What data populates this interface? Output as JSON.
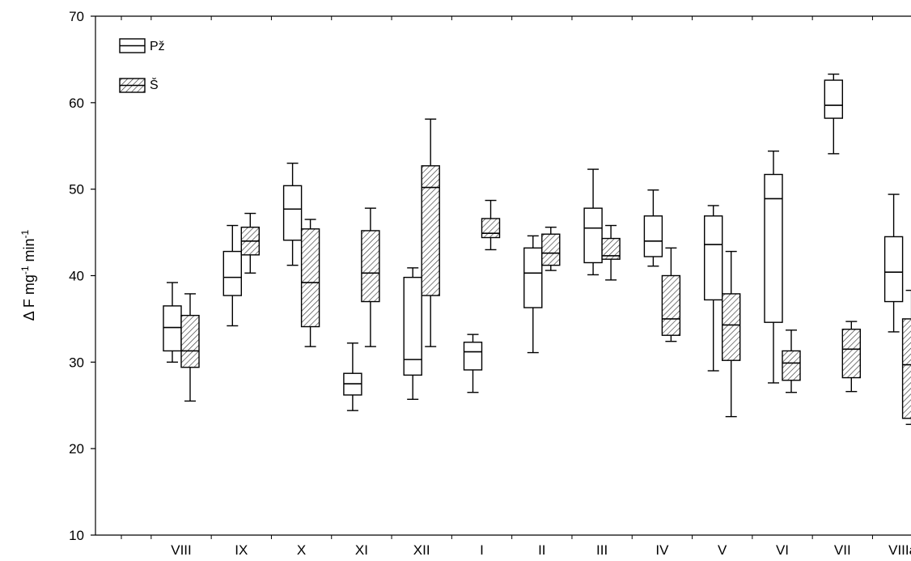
{
  "chart_data": {
    "type": "box",
    "ylabel": {
      "prefix": "Δ F mg",
      "sup1": "-1",
      "mid": " min",
      "sup2": "-1"
    },
    "ylim": [
      10,
      70
    ],
    "yticks": [
      10,
      20,
      30,
      40,
      50,
      60,
      70
    ],
    "categories": [
      "VIII",
      "IX",
      "X",
      "XI",
      "XII",
      "I",
      "II",
      "III",
      "IV",
      "V",
      "VI",
      "VII",
      "VIIIa"
    ],
    "legend": {
      "position": "top-left",
      "items": [
        {
          "name": "Pž",
          "style": "open"
        },
        {
          "name": "Š",
          "style": "hatched"
        }
      ]
    },
    "series": [
      {
        "name": "Pž",
        "style": "open",
        "boxes": [
          {
            "category": "VIII",
            "min": 30.0,
            "q1": 31.3,
            "median": 34.0,
            "q3": 36.5,
            "max": 39.2
          },
          {
            "category": "IX",
            "min": 34.2,
            "q1": 37.7,
            "median": 39.8,
            "q3": 42.8,
            "max": 45.8
          },
          {
            "category": "X",
            "min": 41.2,
            "q1": 44.1,
            "median": 47.7,
            "q3": 50.4,
            "max": 53.0
          },
          {
            "category": "XI",
            "min": 24.4,
            "q1": 26.2,
            "median": 27.5,
            "q3": 28.7,
            "max": 32.2
          },
          {
            "category": "XII",
            "min": 25.7,
            "q1": 28.5,
            "median": 30.3,
            "q3": 39.8,
            "max": 40.9
          },
          {
            "category": "I",
            "min": 26.5,
            "q1": 29.1,
            "median": 31.2,
            "q3": 32.3,
            "max": 33.2
          },
          {
            "category": "II",
            "min": 31.1,
            "q1": 36.3,
            "median": 40.3,
            "q3": 43.2,
            "max": 44.6
          },
          {
            "category": "III",
            "min": 40.1,
            "q1": 41.5,
            "median": 45.5,
            "q3": 47.8,
            "max": 52.3
          },
          {
            "category": "IV",
            "min": 41.1,
            "q1": 42.2,
            "median": 44.0,
            "q3": 46.9,
            "max": 49.9
          },
          {
            "category": "V",
            "min": 29.0,
            "q1": 37.2,
            "median": 43.6,
            "q3": 46.9,
            "max": 48.1
          },
          {
            "category": "VI",
            "min": 27.6,
            "q1": 34.6,
            "median": 48.9,
            "q3": 51.7,
            "max": 54.4
          },
          {
            "category": "VII",
            "min": 54.1,
            "q1": 58.2,
            "median": 59.7,
            "q3": 62.6,
            "max": 63.3
          },
          {
            "category": "VIIIa",
            "min": 33.5,
            "q1": 37.0,
            "median": 40.4,
            "q3": 44.5,
            "max": 49.4
          }
        ]
      },
      {
        "name": "Š",
        "style": "hatched",
        "boxes": [
          {
            "category": "VIII",
            "min": 25.5,
            "q1": 29.4,
            "median": 31.3,
            "q3": 35.4,
            "max": 37.9
          },
          {
            "category": "IX",
            "min": 40.3,
            "q1": 42.4,
            "median": 44.0,
            "q3": 45.6,
            "max": 47.2
          },
          {
            "category": "X",
            "min": 31.8,
            "q1": 34.1,
            "median": 39.2,
            "q3": 45.4,
            "max": 46.5
          },
          {
            "category": "XI",
            "min": 31.8,
            "q1": 37.0,
            "median": 40.3,
            "q3": 45.2,
            "max": 47.8
          },
          {
            "category": "XII",
            "min": 31.8,
            "q1": 37.7,
            "median": 50.2,
            "q3": 52.7,
            "max": 58.1
          },
          {
            "category": "I",
            "min": 43.0,
            "q1": 44.4,
            "median": 44.9,
            "q3": 46.6,
            "max": 48.7
          },
          {
            "category": "II",
            "min": 40.6,
            "q1": 41.2,
            "median": 42.6,
            "q3": 44.8,
            "max": 45.6
          },
          {
            "category": "III",
            "min": 39.5,
            "q1": 41.9,
            "median": 42.3,
            "q3": 44.3,
            "max": 45.8
          },
          {
            "category": "IV",
            "min": 32.4,
            "q1": 33.1,
            "median": 35.0,
            "q3": 40.0,
            "max": 43.2
          },
          {
            "category": "V",
            "min": 23.7,
            "q1": 30.2,
            "median": 34.3,
            "q3": 37.9,
            "max": 42.8
          },
          {
            "category": "VI",
            "min": 26.5,
            "q1": 27.9,
            "median": 29.9,
            "q3": 31.3,
            "max": 33.7
          },
          {
            "category": "VII",
            "min": 26.6,
            "q1": 28.2,
            "median": 31.5,
            "q3": 33.8,
            "max": 34.7
          },
          {
            "category": "VIIIa",
            "min": 22.8,
            "q1": 23.5,
            "median": 29.7,
            "q3": 35.0,
            "max": 38.3
          }
        ]
      }
    ]
  }
}
